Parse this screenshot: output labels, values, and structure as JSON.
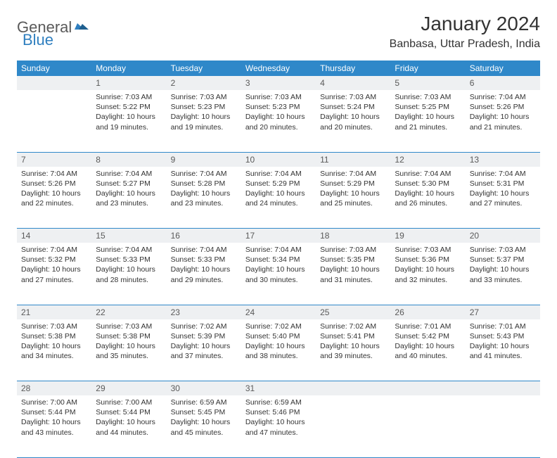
{
  "brand": {
    "part1": "General",
    "part2": "Blue"
  },
  "title": "January 2024",
  "location": "Banbasa, Uttar Pradesh, India",
  "colors": {
    "header_bg": "#2f88c9",
    "header_fg": "#ffffff",
    "daynum_bg": "#eef0f2",
    "text": "#333333",
    "row_border": "#2f88c9",
    "logo_gray": "#5a5a5a",
    "logo_blue": "#2f7fbf"
  },
  "typography": {
    "title_fontsize": 28,
    "location_fontsize": 16,
    "weekday_fontsize": 12,
    "daynum_fontsize": 12,
    "body_fontsize": 10.5
  },
  "weekdays": [
    "Sunday",
    "Monday",
    "Tuesday",
    "Wednesday",
    "Thursday",
    "Friday",
    "Saturday"
  ],
  "weeks": [
    [
      {
        "n": "",
        "sr": "",
        "ss": "",
        "dl": ""
      },
      {
        "n": "1",
        "sr": "7:03 AM",
        "ss": "5:22 PM",
        "dl": "10 hours and 19 minutes."
      },
      {
        "n": "2",
        "sr": "7:03 AM",
        "ss": "5:23 PM",
        "dl": "10 hours and 19 minutes."
      },
      {
        "n": "3",
        "sr": "7:03 AM",
        "ss": "5:23 PM",
        "dl": "10 hours and 20 minutes."
      },
      {
        "n": "4",
        "sr": "7:03 AM",
        "ss": "5:24 PM",
        "dl": "10 hours and 20 minutes."
      },
      {
        "n": "5",
        "sr": "7:03 AM",
        "ss": "5:25 PM",
        "dl": "10 hours and 21 minutes."
      },
      {
        "n": "6",
        "sr": "7:04 AM",
        "ss": "5:26 PM",
        "dl": "10 hours and 21 minutes."
      }
    ],
    [
      {
        "n": "7",
        "sr": "7:04 AM",
        "ss": "5:26 PM",
        "dl": "10 hours and 22 minutes."
      },
      {
        "n": "8",
        "sr": "7:04 AM",
        "ss": "5:27 PM",
        "dl": "10 hours and 23 minutes."
      },
      {
        "n": "9",
        "sr": "7:04 AM",
        "ss": "5:28 PM",
        "dl": "10 hours and 23 minutes."
      },
      {
        "n": "10",
        "sr": "7:04 AM",
        "ss": "5:29 PM",
        "dl": "10 hours and 24 minutes."
      },
      {
        "n": "11",
        "sr": "7:04 AM",
        "ss": "5:29 PM",
        "dl": "10 hours and 25 minutes."
      },
      {
        "n": "12",
        "sr": "7:04 AM",
        "ss": "5:30 PM",
        "dl": "10 hours and 26 minutes."
      },
      {
        "n": "13",
        "sr": "7:04 AM",
        "ss": "5:31 PM",
        "dl": "10 hours and 27 minutes."
      }
    ],
    [
      {
        "n": "14",
        "sr": "7:04 AM",
        "ss": "5:32 PM",
        "dl": "10 hours and 27 minutes."
      },
      {
        "n": "15",
        "sr": "7:04 AM",
        "ss": "5:33 PM",
        "dl": "10 hours and 28 minutes."
      },
      {
        "n": "16",
        "sr": "7:04 AM",
        "ss": "5:33 PM",
        "dl": "10 hours and 29 minutes."
      },
      {
        "n": "17",
        "sr": "7:04 AM",
        "ss": "5:34 PM",
        "dl": "10 hours and 30 minutes."
      },
      {
        "n": "18",
        "sr": "7:03 AM",
        "ss": "5:35 PM",
        "dl": "10 hours and 31 minutes."
      },
      {
        "n": "19",
        "sr": "7:03 AM",
        "ss": "5:36 PM",
        "dl": "10 hours and 32 minutes."
      },
      {
        "n": "20",
        "sr": "7:03 AM",
        "ss": "5:37 PM",
        "dl": "10 hours and 33 minutes."
      }
    ],
    [
      {
        "n": "21",
        "sr": "7:03 AM",
        "ss": "5:38 PM",
        "dl": "10 hours and 34 minutes."
      },
      {
        "n": "22",
        "sr": "7:03 AM",
        "ss": "5:38 PM",
        "dl": "10 hours and 35 minutes."
      },
      {
        "n": "23",
        "sr": "7:02 AM",
        "ss": "5:39 PM",
        "dl": "10 hours and 37 minutes."
      },
      {
        "n": "24",
        "sr": "7:02 AM",
        "ss": "5:40 PM",
        "dl": "10 hours and 38 minutes."
      },
      {
        "n": "25",
        "sr": "7:02 AM",
        "ss": "5:41 PM",
        "dl": "10 hours and 39 minutes."
      },
      {
        "n": "26",
        "sr": "7:01 AM",
        "ss": "5:42 PM",
        "dl": "10 hours and 40 minutes."
      },
      {
        "n": "27",
        "sr": "7:01 AM",
        "ss": "5:43 PM",
        "dl": "10 hours and 41 minutes."
      }
    ],
    [
      {
        "n": "28",
        "sr": "7:00 AM",
        "ss": "5:44 PM",
        "dl": "10 hours and 43 minutes."
      },
      {
        "n": "29",
        "sr": "7:00 AM",
        "ss": "5:44 PM",
        "dl": "10 hours and 44 minutes."
      },
      {
        "n": "30",
        "sr": "6:59 AM",
        "ss": "5:45 PM",
        "dl": "10 hours and 45 minutes."
      },
      {
        "n": "31",
        "sr": "6:59 AM",
        "ss": "5:46 PM",
        "dl": "10 hours and 47 minutes."
      },
      {
        "n": "",
        "sr": "",
        "ss": "",
        "dl": ""
      },
      {
        "n": "",
        "sr": "",
        "ss": "",
        "dl": ""
      },
      {
        "n": "",
        "sr": "",
        "ss": "",
        "dl": ""
      }
    ]
  ],
  "labels": {
    "sunrise": "Sunrise:",
    "sunset": "Sunset:",
    "daylight": "Daylight:"
  }
}
